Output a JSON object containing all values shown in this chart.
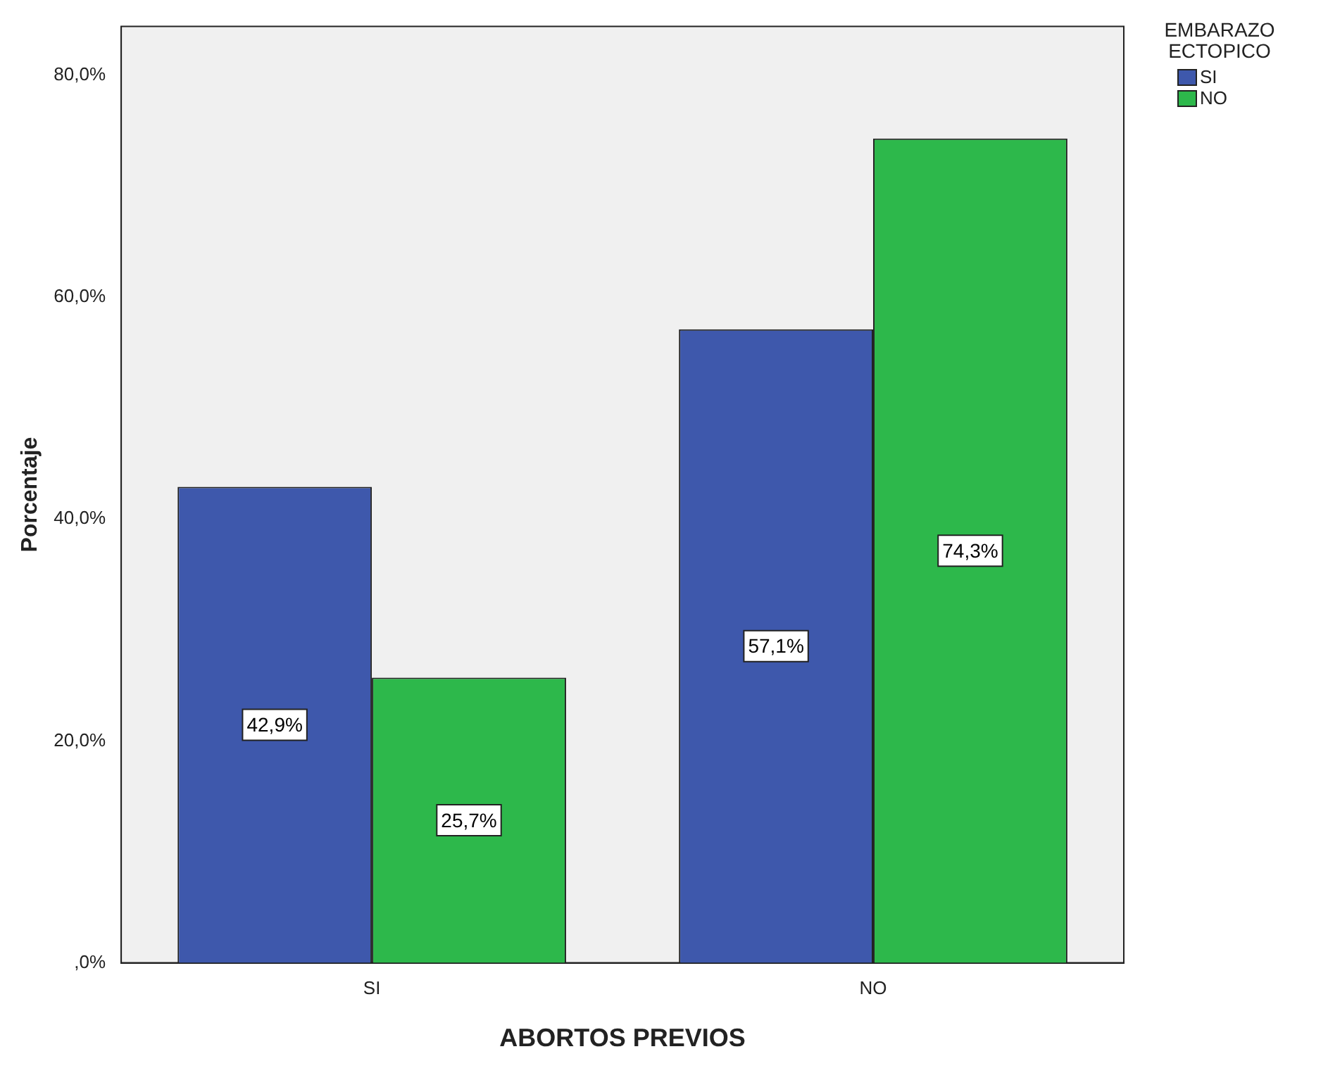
{
  "chart_data": {
    "type": "bar",
    "xlabel": "ABORTOS PREVIOS",
    "ylabel": "Porcentaje",
    "legend_title": "EMBARAZO ECTOPICO",
    "categories": [
      "SI",
      "NO"
    ],
    "series": [
      {
        "name": "SI",
        "color": "#3e58ac",
        "values": [
          42.9,
          57.1
        ],
        "value_labels": [
          "42,9%",
          "57,1%"
        ]
      },
      {
        "name": "NO",
        "color": "#2db84b",
        "values": [
          25.7,
          74.3
        ],
        "value_labels": [
          "25,7%",
          "74,3%"
        ]
      }
    ],
    "ylim": [
      0,
      84.4
    ],
    "yticks": [
      {
        "value": 0,
        "label": ",0%"
      },
      {
        "value": 20,
        "label": "20,0%"
      },
      {
        "value": 40,
        "label": "40,0%"
      },
      {
        "value": 60,
        "label": "60,0%"
      },
      {
        "value": 80,
        "label": "80,0%"
      }
    ],
    "grid": false,
    "legend": "top right"
  }
}
